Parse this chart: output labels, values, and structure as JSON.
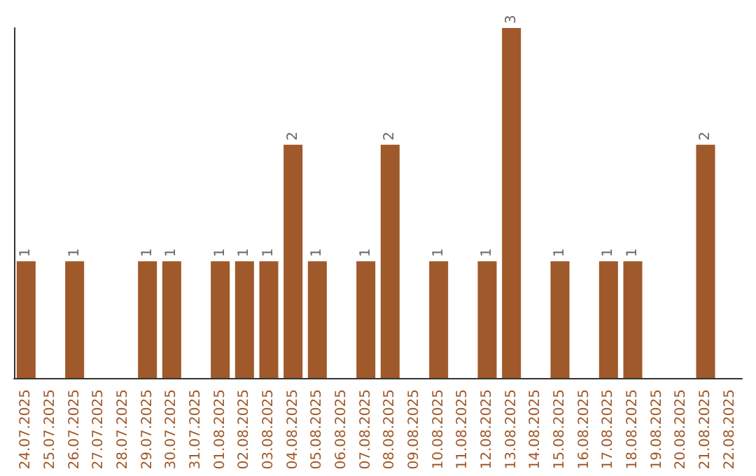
{
  "chart_data": {
    "type": "bar",
    "categories": [
      "24.07.2025",
      "25.07.2025",
      "26.07.2025",
      "27.07.2025",
      "28.07.2025",
      "29.07.2025",
      "30.07.2025",
      "31.07.2025",
      "01.08.2025",
      "02.08.2025",
      "03.08.2025",
      "04.08.2025",
      "05.08.2025",
      "06.08.2025",
      "07.08.2025",
      "08.08.2025",
      "09.08.2025",
      "10.08.2025",
      "11.08.2025",
      "12.08.2025",
      "13.08.2025",
      "14.08.2025",
      "15.08.2025",
      "16.08.2025",
      "17.08.2025",
      "18.08.2025",
      "19.08.2025",
      "20.08.2025",
      "21.08.2025",
      "22.08.2025"
    ],
    "values": [
      1,
      0,
      1,
      0,
      0,
      1,
      1,
      0,
      1,
      1,
      1,
      2,
      1,
      0,
      1,
      2,
      0,
      1,
      0,
      1,
      3,
      0,
      1,
      0,
      1,
      1,
      0,
      0,
      2,
      0
    ],
    "value_labels": [
      "1",
      null,
      "1",
      null,
      null,
      "1",
      "1",
      null,
      "1",
      "1",
      "1",
      "2",
      "1",
      null,
      "1",
      "2",
      null,
      "1",
      null,
      "1",
      "3",
      null,
      "1",
      null,
      "1",
      "1",
      null,
      null,
      "2",
      null
    ],
    "color": "#a0592a",
    "ylim": [
      0,
      3
    ],
    "tick_labels": "x",
    "grid": false
  }
}
